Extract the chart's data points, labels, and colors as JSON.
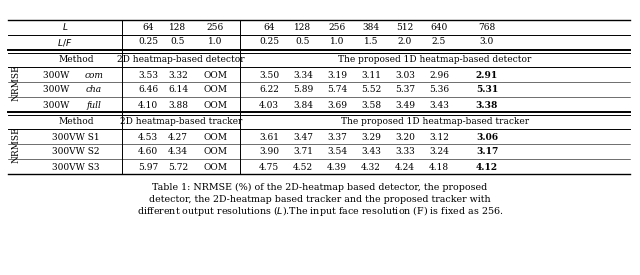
{
  "row_L_vals_2d": [
    "64",
    "128",
    "256"
  ],
  "row_L_vals_1d": [
    "64",
    "128",
    "256",
    "384",
    "512",
    "640",
    "768"
  ],
  "row_LF_vals_2d": [
    "0.25",
    "0.5",
    "1.0"
  ],
  "row_LF_vals_1d": [
    "0.25",
    "0.5",
    "1.0",
    "1.5",
    "2.0",
    "2.5",
    "3.0"
  ],
  "sec1_header_2d": "2D heatmap-based detector",
  "sec1_header_1d": "The proposed 1D heatmap-based detector",
  "sec1_rows": [
    {
      "method": "300W",
      "italic": "com",
      "d2": [
        "3.53",
        "3.32",
        "OOM"
      ],
      "d1": [
        "3.50",
        "3.34",
        "3.19",
        "3.11",
        "3.03",
        "2.96",
        "2.91"
      ]
    },
    {
      "method": "300W",
      "italic": "cha",
      "d2": [
        "6.46",
        "6.14",
        "OOM"
      ],
      "d1": [
        "6.22",
        "5.89",
        "5.74",
        "5.52",
        "5.37",
        "5.36",
        "5.31"
      ]
    },
    {
      "method": "300W",
      "italic": "full",
      "d2": [
        "4.10",
        "3.88",
        "OOM"
      ],
      "d1": [
        "4.03",
        "3.84",
        "3.69",
        "3.58",
        "3.49",
        "3.43",
        "3.38"
      ]
    }
  ],
  "sec2_header_2d": "2D heatmap-based tracker",
  "sec2_header_1d": "The proposed 1D heatmap-based tracker",
  "sec2_rows": [
    {
      "method": "300VW S1",
      "d2": [
        "4.53",
        "4.27",
        "OOM"
      ],
      "d1": [
        "3.61",
        "3.47",
        "3.37",
        "3.29",
        "3.20",
        "3.12",
        "3.06"
      ]
    },
    {
      "method": "300VW S2",
      "d2": [
        "4.60",
        "4.34",
        "OOM"
      ],
      "d1": [
        "3.90",
        "3.71",
        "3.54",
        "3.43",
        "3.33",
        "3.24",
        "3.17"
      ]
    },
    {
      "method": "300VW S3",
      "d2": [
        "5.97",
        "5.72",
        "OOM"
      ],
      "d1": [
        "4.75",
        "4.52",
        "4.39",
        "4.32",
        "4.24",
        "4.18",
        "4.12"
      ]
    }
  ],
  "caption_line1": "Table 1: NRMSE (%) of the 2D-heatmap based detector, the proposed",
  "caption_line2": "detector, the 2D-heatmap based tracker and the proposed tracker with",
  "caption_line3": "different output resolutions ($L$).The input face resolution (F) is fixed as 256.",
  "fig_width": 6.4,
  "fig_height": 2.75,
  "dpi": 100
}
